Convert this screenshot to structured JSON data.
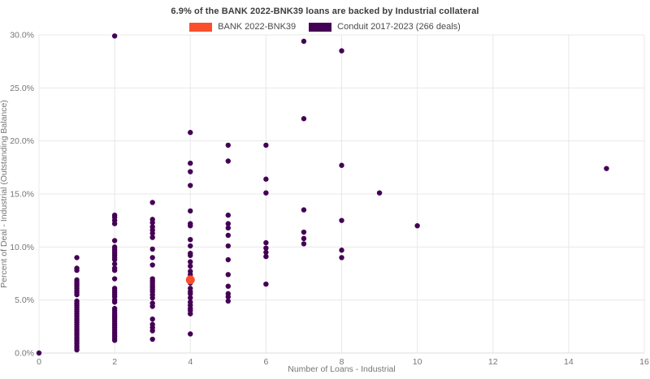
{
  "title": "6.9% of the BANK 2022-BNK39 loans are backed by Industrial collateral",
  "legend": {
    "items": [
      {
        "label": "BANK 2022-BNK39",
        "color": "#f94f2d"
      },
      {
        "label": "Conduit 2017-2023 (266 deals)",
        "color": "#440154"
      }
    ]
  },
  "chart_data": {
    "type": "scatter",
    "title": "6.9% of the BANK 2022-BNK39 loans are backed by Industrial collateral",
    "xlabel": "Number of Loans - Industrial",
    "ylabel": "Percent of Deal - Industrial (Outstanding Balance)",
    "xlim": [
      0,
      16
    ],
    "ylim": [
      0,
      30
    ],
    "x_ticks": [
      0,
      2,
      4,
      6,
      8,
      10,
      12,
      14,
      16
    ],
    "y_ticks": [
      0,
      5,
      10,
      15,
      20,
      25,
      30
    ],
    "y_tick_format": "percent_1dp",
    "grid": true,
    "legend_position": "top-center",
    "grid_color": "#e8e8e8",
    "tick_color": "#767676",
    "series": [
      {
        "name": "Conduit 2017-2023 (266 deals)",
        "color": "#440154",
        "marker_radius": 3.2,
        "points": [
          [
            0,
            0.0
          ],
          [
            1,
            9.0
          ],
          [
            1,
            8.0
          ],
          [
            1,
            7.8
          ],
          [
            1,
            6.9
          ],
          [
            1,
            6.7
          ],
          [
            1,
            6.5
          ],
          [
            1,
            6.3
          ],
          [
            1,
            6.1
          ],
          [
            1,
            5.9
          ],
          [
            1,
            5.7
          ],
          [
            1,
            5.5
          ],
          [
            1,
            4.9
          ],
          [
            1,
            4.7
          ],
          [
            1,
            4.5
          ],
          [
            1,
            4.3
          ],
          [
            1,
            4.1
          ],
          [
            1,
            3.9
          ],
          [
            1,
            3.7
          ],
          [
            1,
            3.5
          ],
          [
            1,
            3.3
          ],
          [
            1,
            3.1
          ],
          [
            1,
            2.9
          ],
          [
            1,
            2.7
          ],
          [
            1,
            2.5
          ],
          [
            1,
            2.3
          ],
          [
            1,
            2.1
          ],
          [
            1,
            1.9
          ],
          [
            1,
            1.7
          ],
          [
            1,
            1.5
          ],
          [
            1,
            1.3
          ],
          [
            1,
            1.1
          ],
          [
            1,
            0.9
          ],
          [
            1,
            0.7
          ],
          [
            1,
            0.5
          ],
          [
            1,
            0.3
          ],
          [
            2,
            29.9
          ],
          [
            2,
            13.0
          ],
          [
            2,
            12.8
          ],
          [
            2,
            12.5
          ],
          [
            2,
            12.2
          ],
          [
            2,
            10.6
          ],
          [
            2,
            10.0
          ],
          [
            2,
            9.8
          ],
          [
            2,
            9.6
          ],
          [
            2,
            9.4
          ],
          [
            2,
            9.2
          ],
          [
            2,
            9.0
          ],
          [
            2,
            8.8
          ],
          [
            2,
            8.4
          ],
          [
            2,
            8.0
          ],
          [
            2,
            7.8
          ],
          [
            2,
            7.0
          ],
          [
            2,
            6.1
          ],
          [
            2,
            5.9
          ],
          [
            2,
            5.7
          ],
          [
            2,
            5.5
          ],
          [
            2,
            5.3
          ],
          [
            2,
            5.0
          ],
          [
            2,
            4.8
          ],
          [
            2,
            4.2
          ],
          [
            2,
            4.0
          ],
          [
            2,
            3.8
          ],
          [
            2,
            3.6
          ],
          [
            2,
            3.4
          ],
          [
            2,
            3.2
          ],
          [
            2,
            3.0
          ],
          [
            2,
            2.8
          ],
          [
            2,
            2.6
          ],
          [
            2,
            2.4
          ],
          [
            2,
            2.2
          ],
          [
            2,
            2.0
          ],
          [
            2,
            1.8
          ],
          [
            2,
            1.6
          ],
          [
            2,
            1.4
          ],
          [
            2,
            1.2
          ],
          [
            3,
            14.2
          ],
          [
            3,
            12.6
          ],
          [
            3,
            12.3
          ],
          [
            3,
            11.9
          ],
          [
            3,
            11.6
          ],
          [
            3,
            11.3
          ],
          [
            3,
            10.9
          ],
          [
            3,
            9.8
          ],
          [
            3,
            9.0
          ],
          [
            3,
            8.3
          ],
          [
            3,
            7.0
          ],
          [
            3,
            6.8
          ],
          [
            3,
            6.6
          ],
          [
            3,
            6.4
          ],
          [
            3,
            6.2
          ],
          [
            3,
            6.0
          ],
          [
            3,
            5.8
          ],
          [
            3,
            5.5
          ],
          [
            3,
            5.2
          ],
          [
            3,
            4.7
          ],
          [
            3,
            4.4
          ],
          [
            3,
            3.2
          ],
          [
            3,
            2.7
          ],
          [
            3,
            2.4
          ],
          [
            3,
            2.1
          ],
          [
            3,
            1.3
          ],
          [
            4,
            20.8
          ],
          [
            4,
            17.9
          ],
          [
            4,
            17.1
          ],
          [
            4,
            15.8
          ],
          [
            4,
            13.4
          ],
          [
            4,
            12.2
          ],
          [
            4,
            12.0
          ],
          [
            4,
            10.7
          ],
          [
            4,
            10.1
          ],
          [
            4,
            9.4
          ],
          [
            4,
            9.2
          ],
          [
            4,
            8.6
          ],
          [
            4,
            8.2
          ],
          [
            4,
            7.7
          ],
          [
            4,
            7.4
          ],
          [
            4,
            7.1
          ],
          [
            4,
            6.6
          ],
          [
            4,
            6.1
          ],
          [
            4,
            5.8
          ],
          [
            4,
            5.6
          ],
          [
            4,
            5.2
          ],
          [
            4,
            4.8
          ],
          [
            4,
            4.5
          ],
          [
            4,
            4.2
          ],
          [
            4,
            4.0
          ],
          [
            4,
            3.7
          ],
          [
            4,
            1.8
          ],
          [
            5,
            19.6
          ],
          [
            5,
            18.1
          ],
          [
            5,
            13.0
          ],
          [
            5,
            12.2
          ],
          [
            5,
            11.8
          ],
          [
            5,
            11.1
          ],
          [
            5,
            10.1
          ],
          [
            5,
            8.8
          ],
          [
            5,
            7.4
          ],
          [
            5,
            6.3
          ],
          [
            5,
            5.6
          ],
          [
            5,
            5.3
          ],
          [
            5,
            4.9
          ],
          [
            6,
            19.6
          ],
          [
            6,
            16.4
          ],
          [
            6,
            15.1
          ],
          [
            6,
            10.4
          ],
          [
            6,
            9.9
          ],
          [
            6,
            9.5
          ],
          [
            6,
            9.1
          ],
          [
            6,
            6.5
          ],
          [
            7,
            29.4
          ],
          [
            7,
            22.1
          ],
          [
            7,
            13.5
          ],
          [
            7,
            11.4
          ],
          [
            7,
            10.8
          ],
          [
            7,
            10.3
          ],
          [
            8,
            28.5
          ],
          [
            8,
            17.7
          ],
          [
            8,
            12.5
          ],
          [
            8,
            9.7
          ],
          [
            8,
            9.0
          ],
          [
            9,
            15.1
          ],
          [
            10,
            12.0
          ],
          [
            15,
            17.4
          ]
        ]
      },
      {
        "name": "BANK 2022-BNK39",
        "color": "#f94f2d",
        "marker_radius": 5.5,
        "points": [
          [
            4,
            6.9
          ]
        ]
      }
    ]
  }
}
